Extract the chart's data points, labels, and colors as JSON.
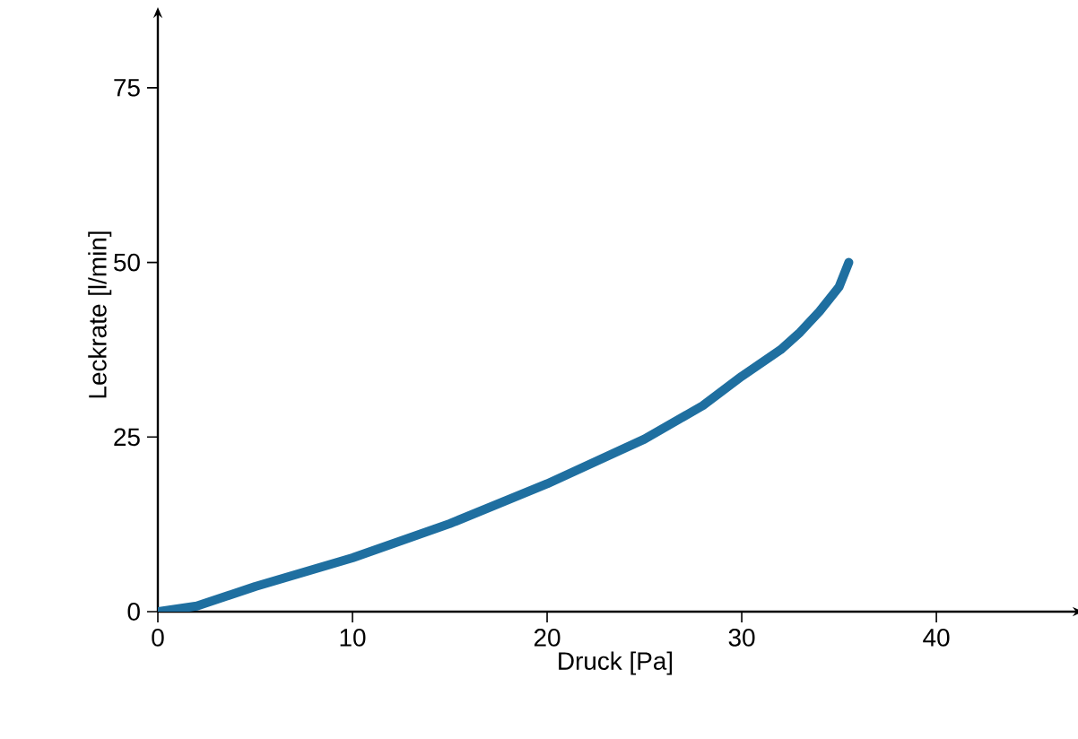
{
  "chart_data": {
    "type": "line",
    "xlabel": "Druck [Pa]",
    "ylabel": "Leckrate [l/min]",
    "xlim": [
      0,
      47
    ],
    "ylim": [
      0,
      85
    ],
    "xticks": [
      0,
      10,
      20,
      30,
      40
    ],
    "yticks": [
      0,
      25,
      50,
      75
    ],
    "series": [
      {
        "color": "#1f6fa0",
        "x": [
          0,
          2,
          5,
          10,
          15,
          20,
          25,
          28,
          30,
          32,
          33,
          34,
          35,
          35.5
        ],
        "values": [
          0,
          0.8,
          3.6,
          7.7,
          12.6,
          18.3,
          24.7,
          29.5,
          33.7,
          37.5,
          40,
          43,
          46.5,
          50
        ]
      }
    ]
  }
}
